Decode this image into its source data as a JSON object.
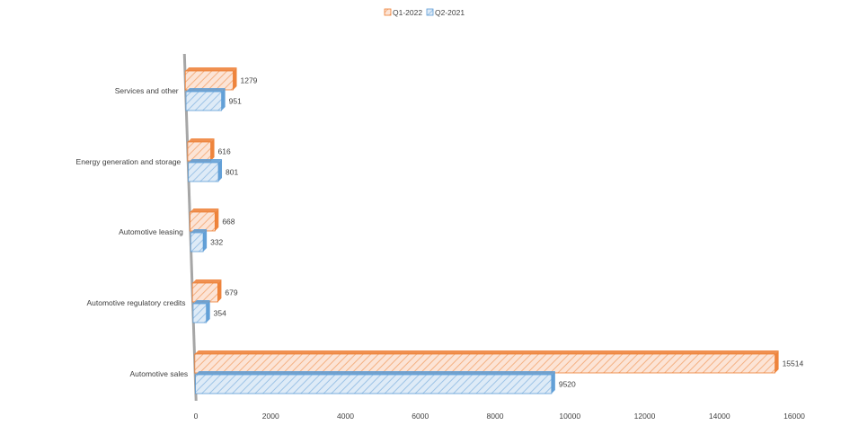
{
  "chart_data": {
    "type": "bar",
    "orientation": "horizontal",
    "style": "3d-clustered",
    "categories": [
      "Automotive sales",
      "Automotive regulatory credits",
      "Automotive leasing",
      "Energy generation and storage",
      "Services and other"
    ],
    "series": [
      {
        "name": "Q1-2022",
        "color": "#F4B183",
        "edge": "#ED7D31",
        "values": [
          15514,
          679,
          668,
          616,
          1279
        ]
      },
      {
        "name": "Q2-2021",
        "color": "#BDD7EE",
        "edge": "#5B9BD5",
        "values": [
          9520,
          354,
          332,
          801,
          951
        ]
      }
    ],
    "xlim": [
      0,
      16000
    ],
    "xticks": [
      "0",
      "2000",
      "4000",
      "6000",
      "8000",
      "10000",
      "12000",
      "14000",
      "16000"
    ],
    "legend_position": "top",
    "grid": false,
    "title": "",
    "xlabel": "",
    "ylabel": ""
  }
}
